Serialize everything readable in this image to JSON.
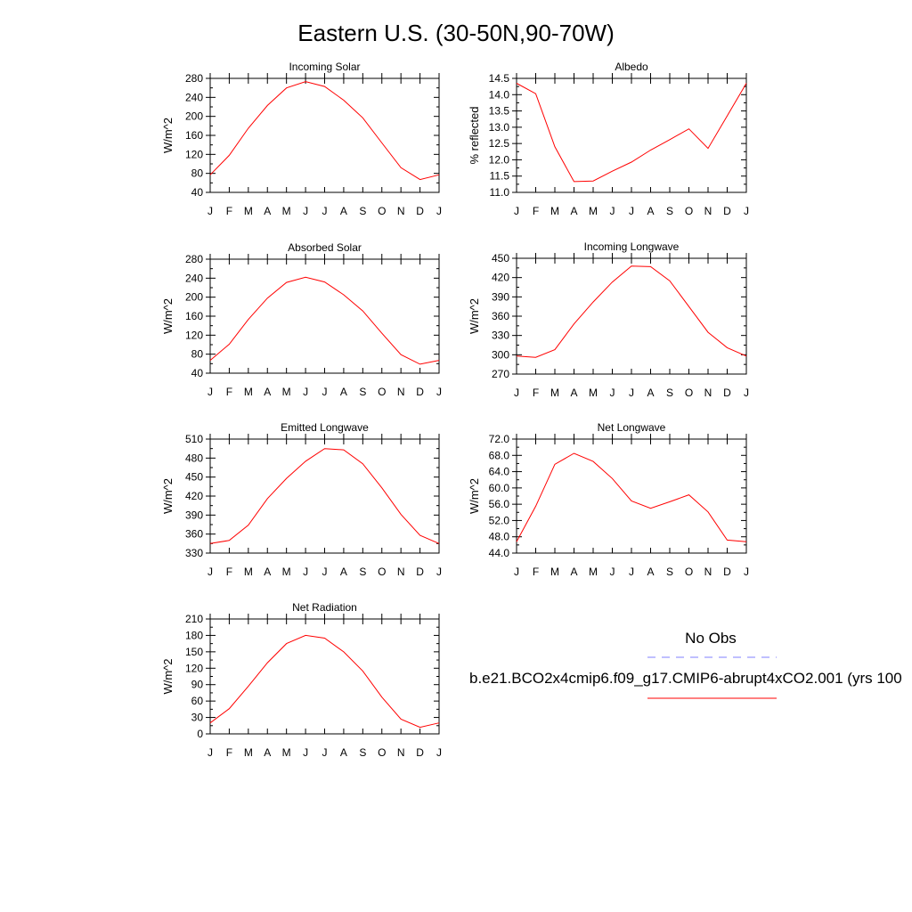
{
  "page": {
    "title": "Eastern U.S. (30-50N,90-70W)"
  },
  "colors": {
    "model_line": "#ff0000",
    "obs_line": "#8080ff",
    "axes": "#000000"
  },
  "legend": {
    "obs_label": "No Obs",
    "model_label": "b.e21.BCO2x4cmip6.f09_g17.CMIP6-abrupt4xCO2.001 (yrs 100"
  },
  "chart_data": [
    {
      "type": "line",
      "title": "Incoming Solar",
      "ylabel": "W/m^2",
      "categories": [
        "J",
        "F",
        "M",
        "A",
        "M",
        "J",
        "J",
        "A",
        "S",
        "O",
        "N",
        "D",
        "J"
      ],
      "ylim": [
        40,
        280
      ],
      "yticks": [
        "280",
        "240",
        "200",
        "160",
        "120",
        "80",
        "40"
      ],
      "series": [
        {
          "values": [
            77,
            118,
            175,
            223,
            260,
            273,
            263,
            234,
            197,
            144,
            92,
            67,
            77
          ]
        }
      ]
    },
    {
      "type": "line",
      "title": "Albedo",
      "ylabel": "% reflected",
      "categories": [
        "J",
        "F",
        "M",
        "A",
        "M",
        "J",
        "J",
        "A",
        "S",
        "O",
        "N",
        "D",
        "J"
      ],
      "ylim": [
        11.0,
        14.5
      ],
      "yticks": [
        "14.5",
        "14.0",
        "13.5",
        "13.0",
        "12.5",
        "12.0",
        "11.5",
        "11.0"
      ],
      "series": [
        {
          "values": [
            14.35,
            14.03,
            12.4,
            11.33,
            11.35,
            11.65,
            11.93,
            12.3,
            12.62,
            12.95,
            12.35,
            13.35,
            14.35
          ]
        }
      ]
    },
    {
      "type": "line",
      "title": "Absorbed Solar",
      "ylabel": "W/m^2",
      "categories": [
        "J",
        "F",
        "M",
        "A",
        "M",
        "J",
        "J",
        "A",
        "S",
        "O",
        "N",
        "D",
        "J"
      ],
      "ylim": [
        40,
        280
      ],
      "yticks": [
        "280",
        "240",
        "200",
        "160",
        "120",
        "80",
        "40"
      ],
      "series": [
        {
          "values": [
            67,
            101,
            153,
            198,
            231,
            242,
            232,
            205,
            171,
            124,
            79,
            59,
            67
          ]
        }
      ]
    },
    {
      "type": "line",
      "title": "Incoming Longwave",
      "ylabel": "W/m^2",
      "categories": [
        "J",
        "F",
        "M",
        "A",
        "M",
        "J",
        "J",
        "A",
        "S",
        "O",
        "N",
        "D",
        "J"
      ],
      "ylim": [
        270,
        450
      ],
      "yticks": [
        "450",
        "420",
        "390",
        "360",
        "330",
        "300",
        "270"
      ],
      "series": [
        {
          "values": [
            298,
            296,
            308,
            348,
            382,
            413,
            438,
            437,
            415,
            375,
            335,
            311,
            298
          ]
        }
      ]
    },
    {
      "type": "line",
      "title": "Emitted Longwave",
      "ylabel": "W/m^2",
      "categories": [
        "J",
        "F",
        "M",
        "A",
        "M",
        "J",
        "J",
        "A",
        "S",
        "O",
        "N",
        "D",
        "J"
      ],
      "ylim": [
        330,
        510
      ],
      "yticks": [
        "510",
        "480",
        "450",
        "420",
        "390",
        "360",
        "330"
      ],
      "series": [
        {
          "values": [
            345,
            350,
            374,
            416,
            448,
            475,
            495,
            493,
            471,
            433,
            391,
            358,
            345
          ]
        }
      ]
    },
    {
      "type": "line",
      "title": "Net Longwave",
      "ylabel": "W/m^2",
      "categories": [
        "J",
        "F",
        "M",
        "A",
        "M",
        "J",
        "J",
        "A",
        "S",
        "O",
        "N",
        "D",
        "J"
      ],
      "ylim": [
        44.0,
        72.0
      ],
      "yticks": [
        "72.0",
        "68.0",
        "64.0",
        "60.0",
        "56.0",
        "52.0",
        "48.0",
        "44.0"
      ],
      "series": [
        {
          "values": [
            46.8,
            55.5,
            65.8,
            68.5,
            66.5,
            62.3,
            56.8,
            55.0,
            56.6,
            58.3,
            54.1,
            47.2,
            46.8
          ]
        }
      ]
    },
    {
      "type": "line",
      "title": "Net Radiation",
      "ylabel": "W/m^2",
      "categories": [
        "J",
        "F",
        "M",
        "A",
        "M",
        "J",
        "J",
        "A",
        "S",
        "O",
        "N",
        "D",
        "J"
      ],
      "ylim": [
        0,
        210
      ],
      "yticks": [
        "210",
        "180",
        "150",
        "120",
        "90",
        "60",
        "30",
        "0"
      ],
      "series": [
        {
          "values": [
            20,
            46,
            87,
            130,
            165,
            180,
            175,
            150,
            115,
            67,
            27,
            12,
            20
          ]
        }
      ]
    }
  ]
}
